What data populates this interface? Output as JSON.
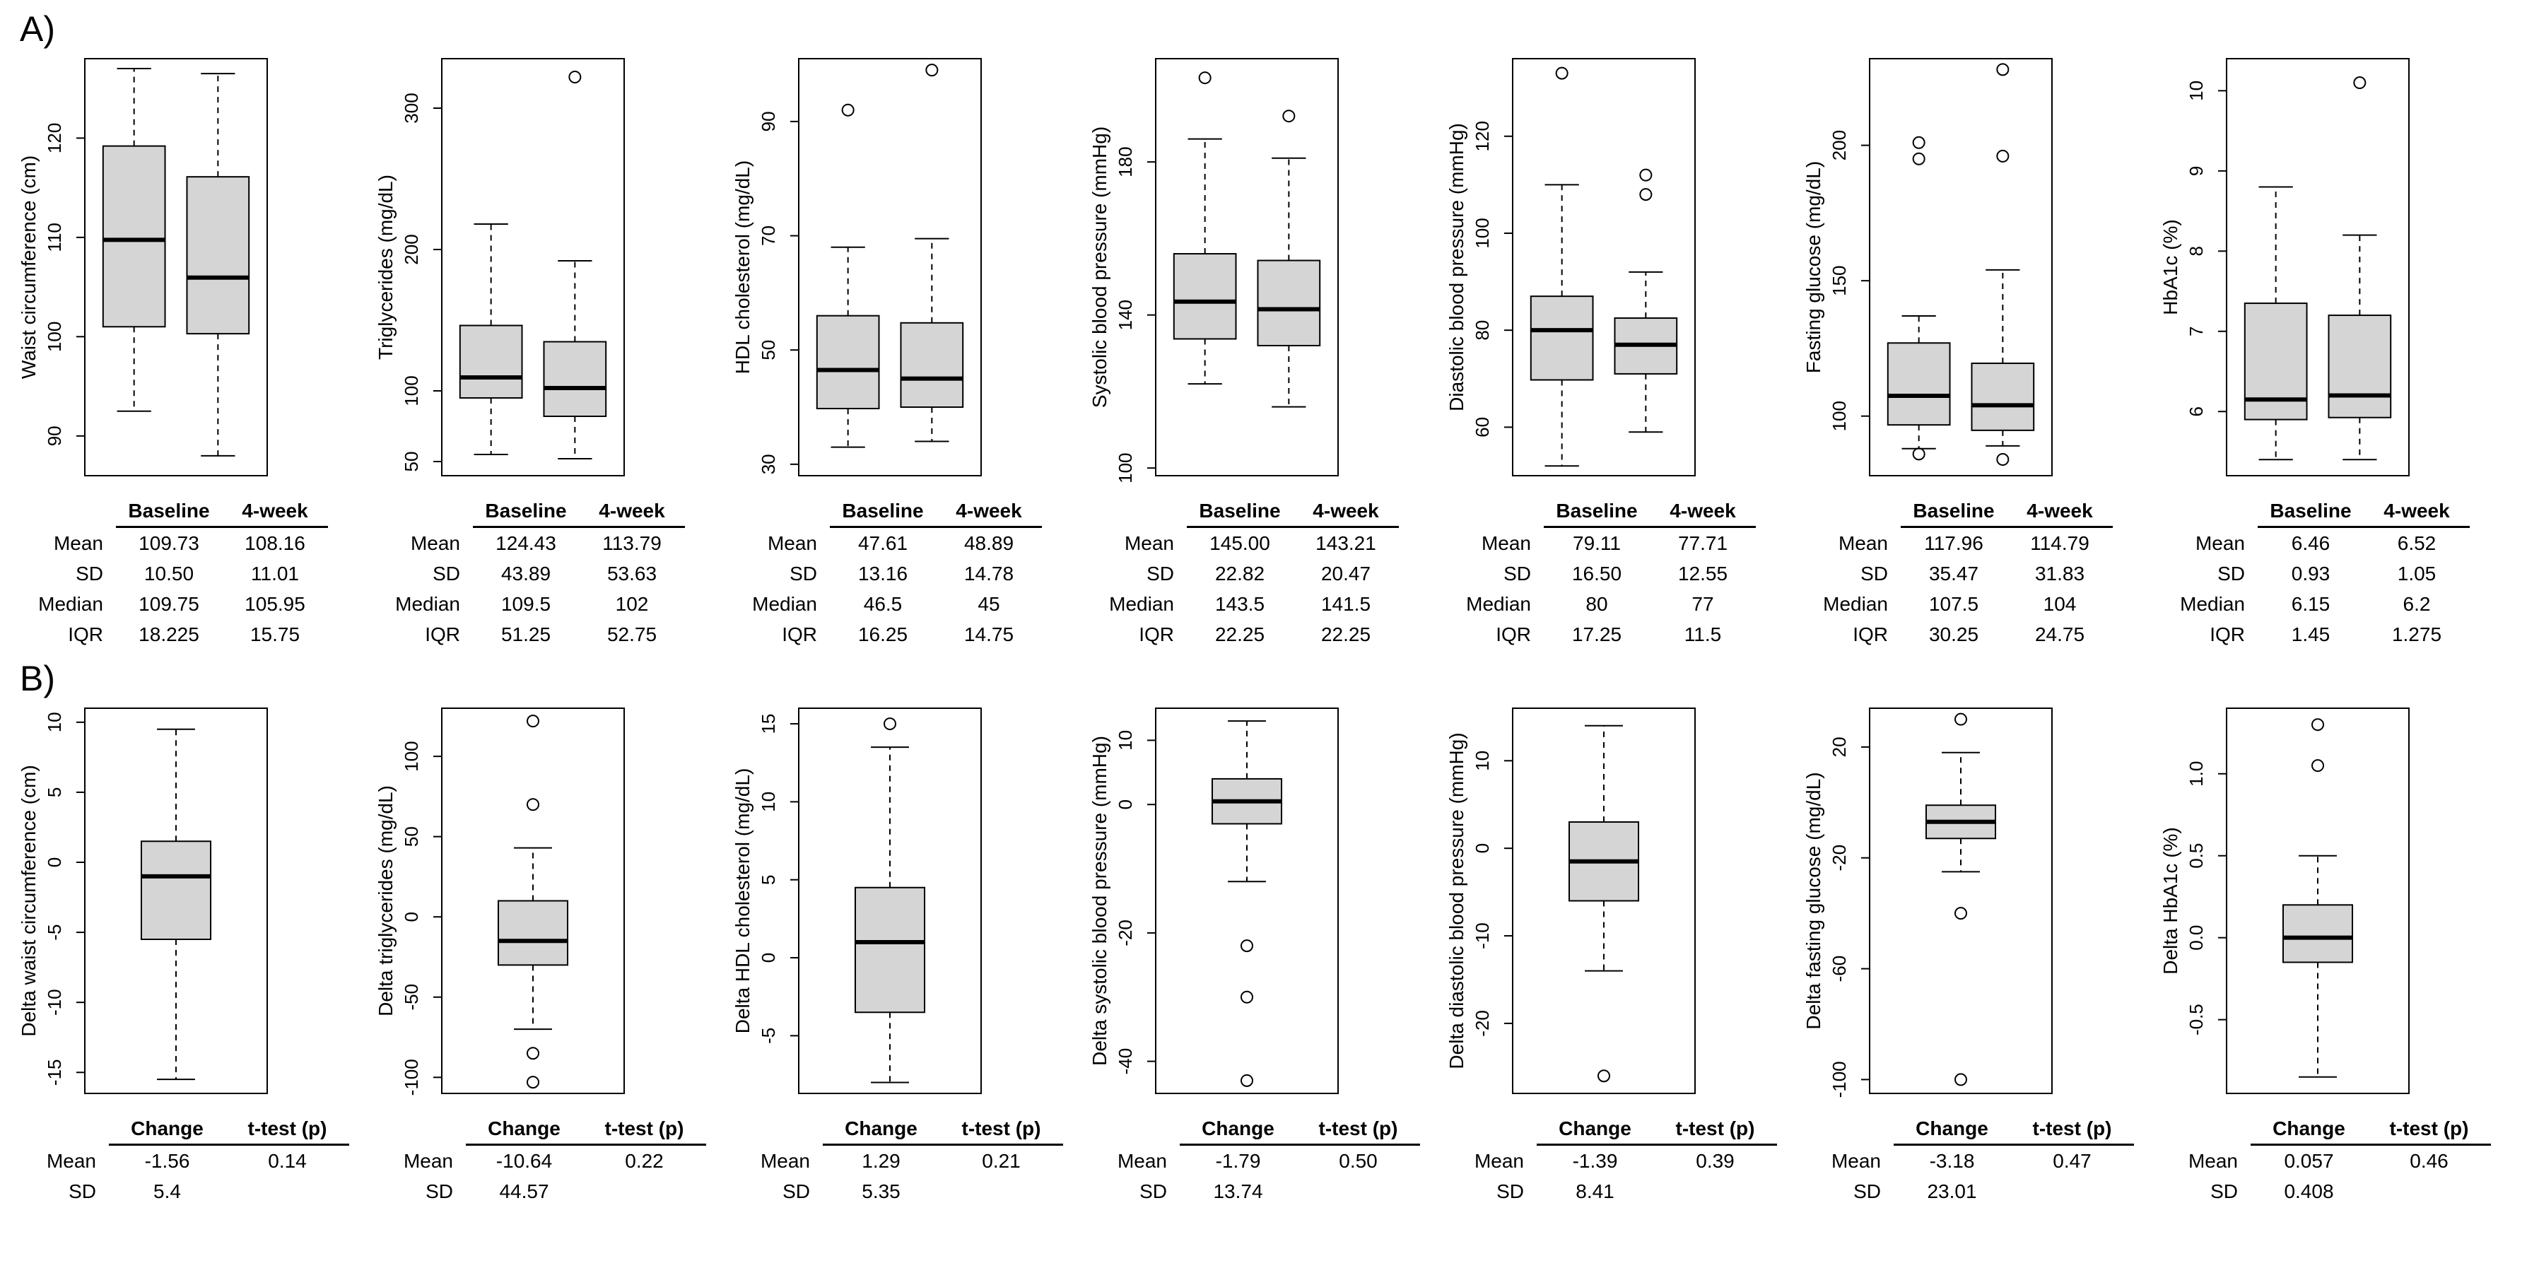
{
  "labels": {
    "panel_a": "A)",
    "panel_b": "B)"
  },
  "chart_data": {
    "type": "boxplot",
    "layout": "2 rows x 7 panels; row A compares Baseline vs 4-week, row B shows change (delta) distributions",
    "box_fill_color": "#d5d5d5",
    "rows": [
      {
        "id": "A",
        "group_labels": [
          "Baseline",
          "4-week"
        ],
        "table_header": [
          "Baseline",
          "4-week"
        ],
        "panels": [
          {
            "ylabel": "Waist circumference (cm)",
            "ylim": [
              86,
              128
            ],
            "yticks": [
              "90",
              "100",
              "110",
              "120"
            ],
            "boxes": [
              {
                "whisker_low": 92.5,
                "q1": 101.0,
                "median": 109.75,
                "q3": 119.2,
                "whisker_high": 127,
                "outliers": []
              },
              {
                "whisker_low": 88,
                "q1": 100.3,
                "median": 105.95,
                "q3": 116.1,
                "whisker_high": 126.5,
                "outliers": []
              }
            ],
            "table": [
              [
                "Mean",
                "109.73",
                "108.16"
              ],
              [
                "SD",
                "10.50",
                "11.01"
              ],
              [
                "Median",
                "109.75",
                "105.95"
              ],
              [
                "IQR",
                "18.225",
                "15.75"
              ]
            ]
          },
          {
            "ylabel": "Triglycerides (mg/dL)",
            "ylim": [
              40,
              335
            ],
            "yticks": [
              "50",
              "100",
              "200",
              "300"
            ],
            "boxes": [
              {
                "whisker_low": 55,
                "q1": 95,
                "median": 109.5,
                "q3": 146.25,
                "whisker_high": 218,
                "outliers": []
              },
              {
                "whisker_low": 52,
                "q1": 82,
                "median": 102,
                "q3": 134.75,
                "whisker_high": 192,
                "outliers": [
                  322
                ]
              }
            ],
            "table": [
              [
                "Mean",
                "124.43",
                "113.79"
              ],
              [
                "SD",
                "43.89",
                "53.63"
              ],
              [
                "Median",
                "109.5",
                "102"
              ],
              [
                "IQR",
                "51.25",
                "52.75"
              ]
            ]
          },
          {
            "ylabel": "HDL cholesterol (mg/dL)",
            "ylim": [
              28,
              101
            ],
            "yticks": [
              "30",
              "50",
              "70",
              "90"
            ],
            "boxes": [
              {
                "whisker_low": 33,
                "q1": 39.75,
                "median": 46.5,
                "q3": 56,
                "whisker_high": 68,
                "outliers": [
                  92
                ]
              },
              {
                "whisker_low": 34,
                "q1": 40,
                "median": 45,
                "q3": 54.75,
                "whisker_high": 69.5,
                "outliers": [
                  99
                ]
              }
            ],
            "table": [
              [
                "Mean",
                "47.61",
                "48.89"
              ],
              [
                "SD",
                "13.16",
                "14.78"
              ],
              [
                "Median",
                "46.5",
                "45"
              ],
              [
                "IQR",
                "16.25",
                "14.75"
              ]
            ]
          },
          {
            "ylabel": "Systolic blood pressure (mmHg)",
            "ylim": [
              98,
              207
            ],
            "yticks": [
              "100",
              "140",
              "180"
            ],
            "boxes": [
              {
                "whisker_low": 122,
                "q1": 133.75,
                "median": 143.5,
                "q3": 156,
                "whisker_high": 186,
                "outliers": [
                  202
                ]
              },
              {
                "whisker_low": 116,
                "q1": 132,
                "median": 141.5,
                "q3": 154.25,
                "whisker_high": 181,
                "outliers": [
                  192
                ]
              }
            ],
            "table": [
              [
                "Mean",
                "145.00",
                "143.21"
              ],
              [
                "SD",
                "22.82",
                "20.47"
              ],
              [
                "Median",
                "143.5",
                "141.5"
              ],
              [
                "IQR",
                "22.25",
                "22.25"
              ]
            ]
          },
          {
            "ylabel": "Diastolic blood pressure (mmHg)",
            "ylim": [
              50,
              136
            ],
            "yticks": [
              "60",
              "80",
              "100",
              "120"
            ],
            "boxes": [
              {
                "whisker_low": 52,
                "q1": 69.75,
                "median": 80,
                "q3": 87,
                "whisker_high": 110,
                "outliers": [
                  133
                ]
              },
              {
                "whisker_low": 59,
                "q1": 71,
                "median": 77,
                "q3": 82.5,
                "whisker_high": 92,
                "outliers": [
                  108,
                  112
                ]
              }
            ],
            "table": [
              [
                "Mean",
                "79.11",
                "77.71"
              ],
              [
                "SD",
                "16.50",
                "12.55"
              ],
              [
                "Median",
                "80",
                "77"
              ],
              [
                "IQR",
                "17.25",
                "11.5"
              ]
            ]
          },
          {
            "ylabel": "Fasting glucose (mg/dL)",
            "ylim": [
              78,
              232
            ],
            "yticks": [
              "100",
              "150",
              "200"
            ],
            "boxes": [
              {
                "whisker_low": 88,
                "q1": 96.75,
                "median": 107.5,
                "q3": 127,
                "whisker_high": 137,
                "outliers": [
                  86,
                  195,
                  201
                ]
              },
              {
                "whisker_low": 89,
                "q1": 94.75,
                "median": 104,
                "q3": 119.5,
                "whisker_high": 154,
                "outliers": [
                  84,
                  196,
                  228
                ]
              }
            ],
            "table": [
              [
                "Mean",
                "117.96",
                "114.79"
              ],
              [
                "SD",
                "35.47",
                "31.83"
              ],
              [
                "Median",
                "107.5",
                "104"
              ],
              [
                "IQR",
                "30.25",
                "24.75"
              ]
            ]
          },
          {
            "ylabel": "HbA1c (%)",
            "ylim": [
              5.2,
              10.4
            ],
            "yticks": [
              "6",
              "7",
              "8",
              "9",
              "10"
            ],
            "boxes": [
              {
                "whisker_low": 5.4,
                "q1": 5.9,
                "median": 6.15,
                "q3": 7.35,
                "whisker_high": 8.8,
                "outliers": []
              },
              {
                "whisker_low": 5.4,
                "q1": 5.925,
                "median": 6.2,
                "q3": 7.2,
                "whisker_high": 8.2,
                "outliers": [
                  10.1
                ]
              }
            ],
            "table": [
              [
                "Mean",
                "6.46",
                "6.52"
              ],
              [
                "SD",
                "0.93",
                "1.05"
              ],
              [
                "Median",
                "6.15",
                "6.2"
              ],
              [
                "IQR",
                "1.45",
                "1.275"
              ]
            ]
          }
        ]
      },
      {
        "id": "B",
        "group_labels": [
          "Change"
        ],
        "table_header": [
          "Change",
          "t-test (p)"
        ],
        "panels": [
          {
            "ylabel": "Delta waist circumference (cm)",
            "ylim": [
              -16.5,
              11
            ],
            "yticks": [
              "-15",
              "-10",
              "-5",
              "0",
              "5",
              "10"
            ],
            "boxes": [
              {
                "whisker_low": -15.5,
                "q1": -5.5,
                "median": -1,
                "q3": 1.5,
                "whisker_high": 9.5,
                "outliers": []
              }
            ],
            "table": [
              [
                "Mean",
                "-1.56",
                "0.14"
              ],
              [
                "SD",
                "5.4",
                ""
              ]
            ]
          },
          {
            "ylabel": "Delta triglycerides (mg/dL)",
            "ylim": [
              -110,
              130
            ],
            "yticks": [
              "-100",
              "-50",
              "0",
              "50",
              "100"
            ],
            "boxes": [
              {
                "whisker_low": -70,
                "q1": -30,
                "median": -15,
                "q3": 10,
                "whisker_high": 43,
                "outliers": [
                  122,
                  70,
                  -85,
                  -103
                ]
              }
            ],
            "table": [
              [
                "Mean",
                "-10.64",
                "0.22"
              ],
              [
                "SD",
                "44.57",
                ""
              ]
            ]
          },
          {
            "ylabel": "Delta HDL cholesterol (mg/dL)",
            "ylim": [
              -8.7,
              16
            ],
            "yticks": [
              "-5",
              "0",
              "5",
              "10",
              "15"
            ],
            "boxes": [
              {
                "whisker_low": -8,
                "q1": -3.5,
                "median": 1,
                "q3": 4.5,
                "whisker_high": 13.5,
                "outliers": [
                  15
                ]
              }
            ],
            "table": [
              [
                "Mean",
                "1.29",
                "0.21"
              ],
              [
                "SD",
                "5.35",
                ""
              ]
            ]
          },
          {
            "ylabel": "Delta systolic blood pressure (mmHg)",
            "ylim": [
              -45,
              15
            ],
            "yticks": [
              "-40",
              "-20",
              "0",
              "10"
            ],
            "boxes": [
              {
                "whisker_low": -12,
                "q1": -3,
                "median": 0.5,
                "q3": 4,
                "whisker_high": 13,
                "outliers": [
                  -22,
                  -30,
                  -43
                ]
              }
            ],
            "table": [
              [
                "Mean",
                "-1.79",
                "0.50"
              ],
              [
                "SD",
                "13.74",
                ""
              ]
            ]
          },
          {
            "ylabel": "Delta diastolic blood pressure (mmHg)",
            "ylim": [
              -28,
              16
            ],
            "yticks": [
              "-20",
              "-10",
              "0",
              "10"
            ],
            "boxes": [
              {
                "whisker_low": -14,
                "q1": -6,
                "median": -1.5,
                "q3": 3,
                "whisker_high": 14,
                "outliers": [
                  -26
                ]
              }
            ],
            "table": [
              [
                "Mean",
                "-1.39",
                "0.39"
              ],
              [
                "SD",
                "8.41",
                ""
              ]
            ]
          },
          {
            "ylabel": "Delta fasting glucose (mg/dL)",
            "ylim": [
              -105,
              34
            ],
            "yticks": [
              "-100",
              "-60",
              "-20",
              "20"
            ],
            "boxes": [
              {
                "whisker_low": -25,
                "q1": -13,
                "median": -7,
                "q3": -1,
                "whisker_high": 18,
                "outliers": [
                  30,
                  -40,
                  -100
                ]
              }
            ],
            "table": [
              [
                "Mean",
                "-3.18",
                "0.47"
              ],
              [
                "SD",
                "23.01",
                ""
              ]
            ]
          },
          {
            "ylabel": "Delta HbA1c (%)",
            "ylim": [
              -0.95,
              1.4
            ],
            "yticks": [
              "-0.5",
              "0.0",
              "0.5",
              "1.0"
            ],
            "boxes": [
              {
                "whisker_low": -0.85,
                "q1": -0.15,
                "median": 0,
                "q3": 0.2,
                "whisker_high": 0.5,
                "outliers": [
                  1.05,
                  1.3
                ]
              }
            ],
            "table": [
              [
                "Mean",
                "0.057",
                "0.46"
              ],
              [
                "SD",
                "0.408",
                ""
              ]
            ]
          }
        ]
      }
    ]
  }
}
